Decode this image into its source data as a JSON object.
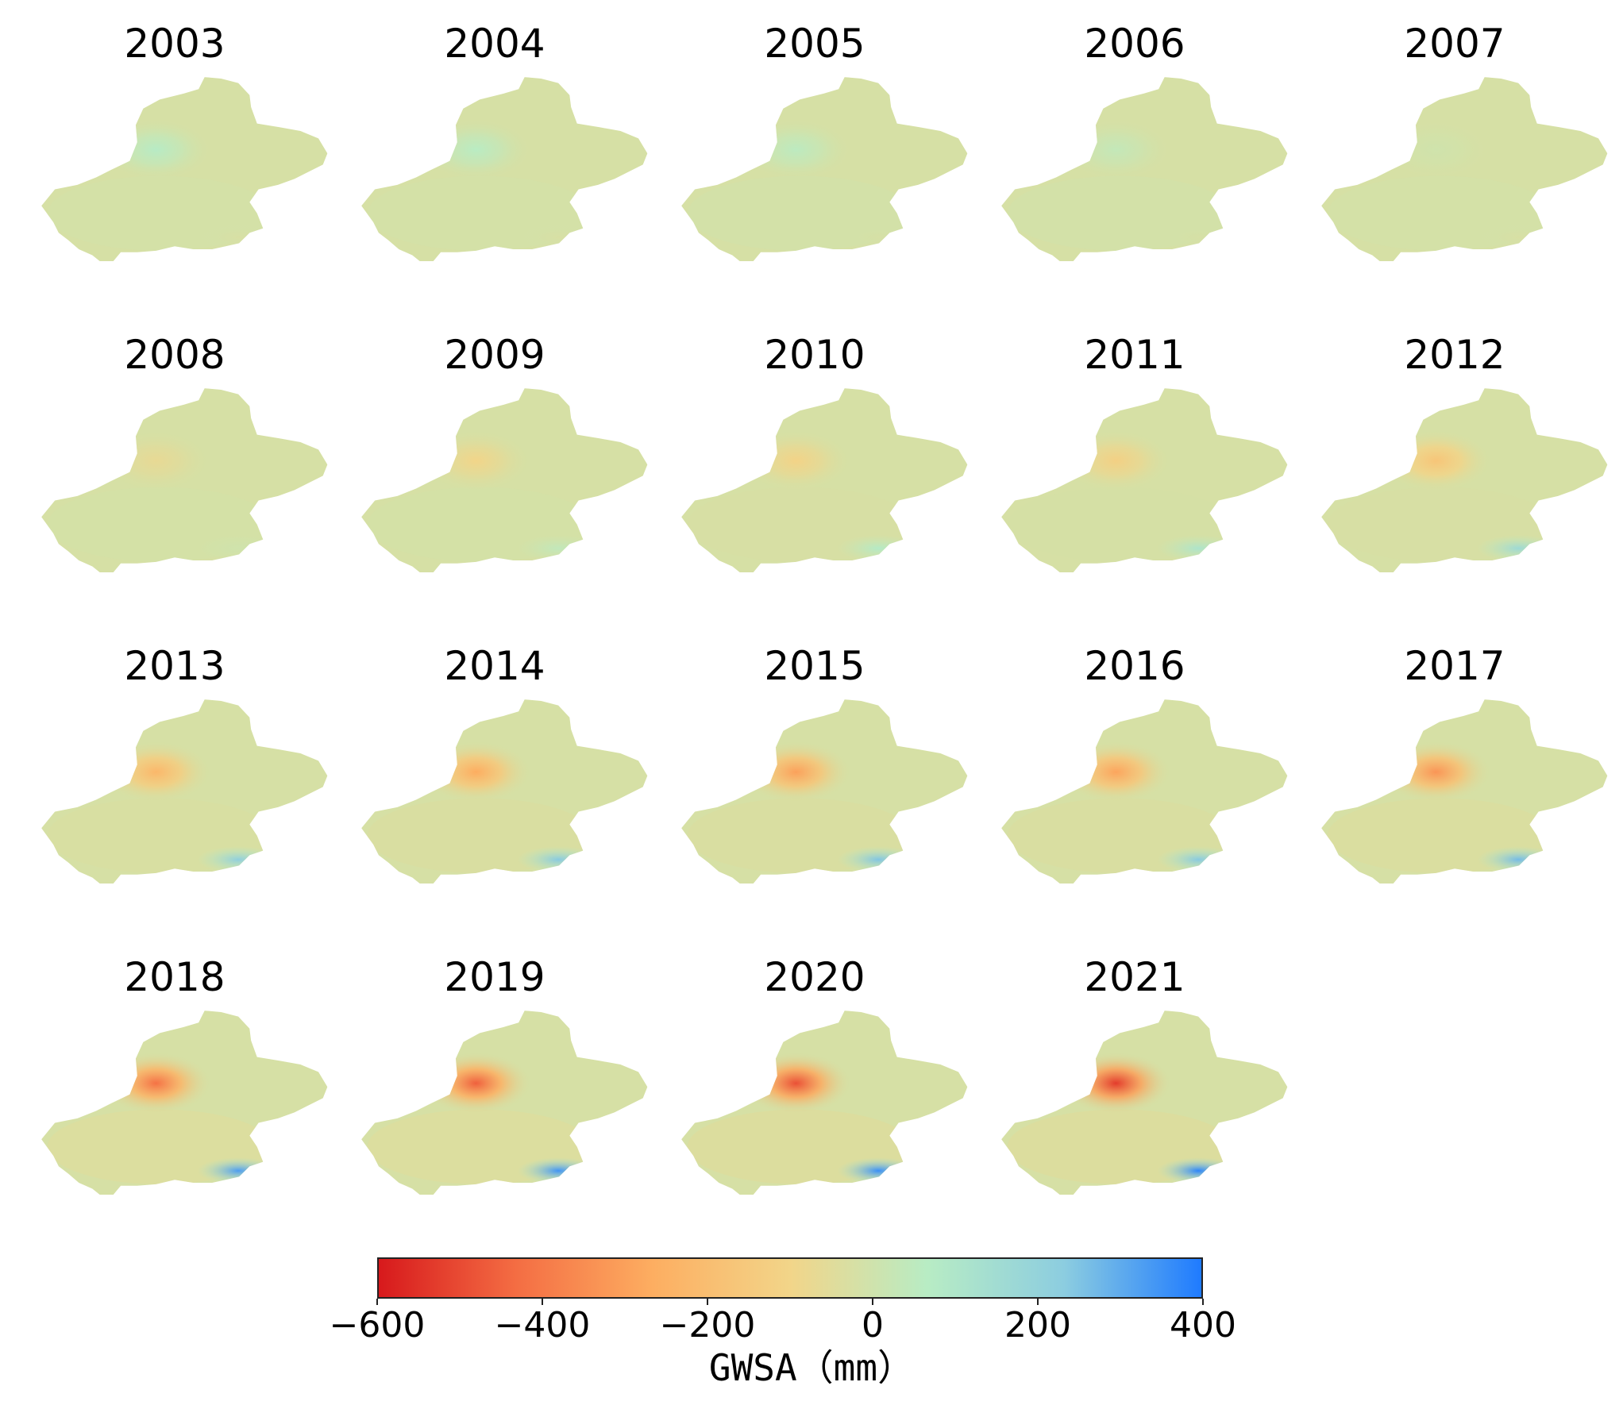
{
  "figure": {
    "colormap": {
      "stops": [
        "#d7191c",
        "#f46d43",
        "#fdae61",
        "#f2d589",
        "#b8ecc4",
        "#8ccde0",
        "#1f7bff"
      ],
      "vmin": -600,
      "vmax": 400
    },
    "colorbar": {
      "ticks": [
        "−600",
        "−400",
        "−200",
        "0",
        "200",
        "400"
      ],
      "tick_values": [
        -600,
        -400,
        -200,
        0,
        200,
        400
      ],
      "label": "GWSA（mm）"
    },
    "panels": [
      {
        "year": "2003",
        "hotspot": 70,
        "tarim_offset": -10,
        "south_east": -25
      },
      {
        "year": "2004",
        "hotspot": 65,
        "tarim_offset": -10,
        "south_east": -25
      },
      {
        "year": "2005",
        "hotspot": 55,
        "tarim_offset": -5,
        "south_east": -20
      },
      {
        "year": "2006",
        "hotspot": 35,
        "tarim_offset": -5,
        "south_east": -20
      },
      {
        "year": "2007",
        "hotspot": 0,
        "tarim_offset": -10,
        "south_east": -25
      },
      {
        "year": "2008",
        "hotspot": -70,
        "tarim_offset": -15,
        "south_east": 0
      },
      {
        "year": "2009",
        "hotspot": -100,
        "tarim_offset": -15,
        "south_east": 40
      },
      {
        "year": "2010",
        "hotspot": -110,
        "tarim_offset": -25,
        "south_east": 80
      },
      {
        "year": "2011",
        "hotspot": -120,
        "tarim_offset": -20,
        "south_east": 110
      },
      {
        "year": "2012",
        "hotspot": -170,
        "tarim_offset": -25,
        "south_east": 170
      },
      {
        "year": "2013",
        "hotspot": -230,
        "tarim_offset": -35,
        "south_east": 220
      },
      {
        "year": "2014",
        "hotspot": -270,
        "tarim_offset": -40,
        "south_east": 240
      },
      {
        "year": "2015",
        "hotspot": -300,
        "tarim_offset": -40,
        "south_east": 250
      },
      {
        "year": "2016",
        "hotspot": -290,
        "tarim_offset": -40,
        "south_east": 240
      },
      {
        "year": "2017",
        "hotspot": -330,
        "tarim_offset": -45,
        "south_east": 270
      },
      {
        "year": "2018",
        "hotspot": -420,
        "tarim_offset": -50,
        "south_east": 330
      },
      {
        "year": "2019",
        "hotspot": -460,
        "tarim_offset": -50,
        "south_east": 350
      },
      {
        "year": "2020",
        "hotspot": -490,
        "tarim_offset": -55,
        "south_east": 360
      },
      {
        "year": "2021",
        "hotspot": -530,
        "tarim_offset": -55,
        "south_east": 380
      }
    ]
  }
}
